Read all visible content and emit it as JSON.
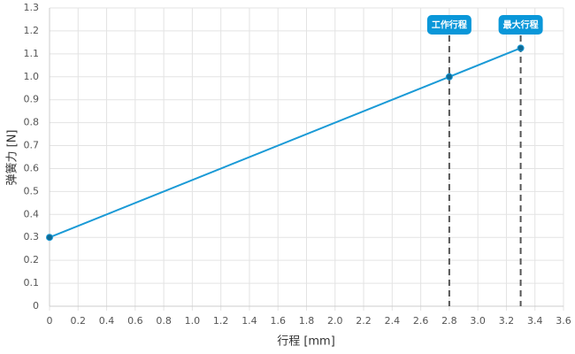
{
  "chart_data": {
    "type": "line",
    "x_label": "行程 [mm]",
    "y_label": "弹簧力 [N]",
    "x": [
      0,
      2.8,
      3.3
    ],
    "series": [
      {
        "color": "#1a9ad6",
        "values": [
          0.3,
          1.0,
          1.125
        ]
      }
    ],
    "xlim": [
      0,
      3.6
    ],
    "ylim": [
      0,
      1.3
    ],
    "xticks": [
      0,
      0.2,
      0.4,
      0.6,
      0.8,
      {
        "value": 1,
        "label": "1.0"
      },
      1.2,
      1.4,
      1.6,
      1.8,
      {
        "value": 2,
        "label": "2.0"
      },
      2.2,
      2.4,
      2.6,
      2.8,
      {
        "value": 3,
        "label": "3.0"
      },
      3.2,
      3.4,
      3.6
    ],
    "yticks": [
      0,
      0.1,
      0.2,
      0.3,
      0.4,
      0.5,
      0.6,
      0.7,
      0.8,
      0.9,
      {
        "value": 1,
        "label": "1.0"
      },
      1.1,
      1.2,
      1.3
    ],
    "grid": true,
    "annotations": [
      {
        "x": 2.8,
        "label": "工作行程"
      },
      {
        "x": 3.3,
        "label": "最大行程"
      }
    ]
  }
}
